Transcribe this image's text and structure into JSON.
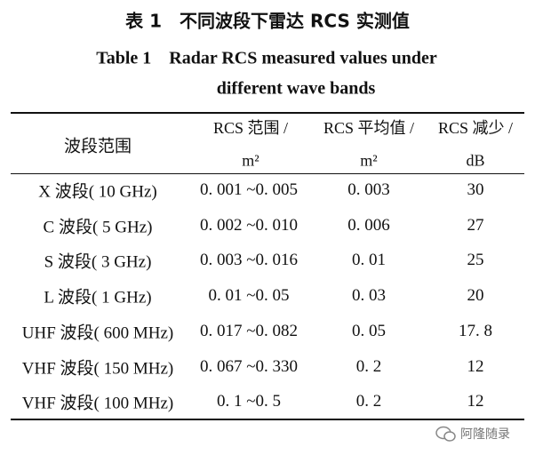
{
  "title_zh": "表 1　不同波段下雷达 RCS 实测值",
  "title_en": [
    "Table 1　Radar RCS measured values under",
    "different wave bands"
  ],
  "table": {
    "header": [
      {
        "text": "波段范围"
      },
      {
        "text": "RCS 范围 /",
        "unit": "m²"
      },
      {
        "text": "RCS 平均值 /",
        "unit": "m²"
      },
      {
        "text": "RCS 减少 /",
        "unit": "dB"
      }
    ],
    "rows": [
      [
        "X 波段( 10 GHz)",
        "0. 001 ~0. 005",
        "0. 003",
        "30"
      ],
      [
        "C 波段( 5 GHz)",
        "0. 002 ~0. 010",
        "0. 006",
        "27"
      ],
      [
        "S 波段( 3 GHz)",
        "0. 003 ~0. 016",
        "0. 01",
        "25"
      ],
      [
        "L 波段( 1 GHz)",
        "0. 01 ~0. 05",
        "0. 03",
        "20"
      ],
      [
        "UHF 波段( 600 MHz)",
        "0. 017 ~0. 082",
        "0. 05",
        "17. 8"
      ],
      [
        "VHF 波段( 150 MHz)",
        "0. 067 ~0. 330",
        "0. 2",
        "12"
      ],
      [
        "VHF 波段( 100 MHz)",
        "0. 1 ~0. 5",
        "0. 2",
        "12"
      ]
    ]
  },
  "watermark": "阿隆随录"
}
